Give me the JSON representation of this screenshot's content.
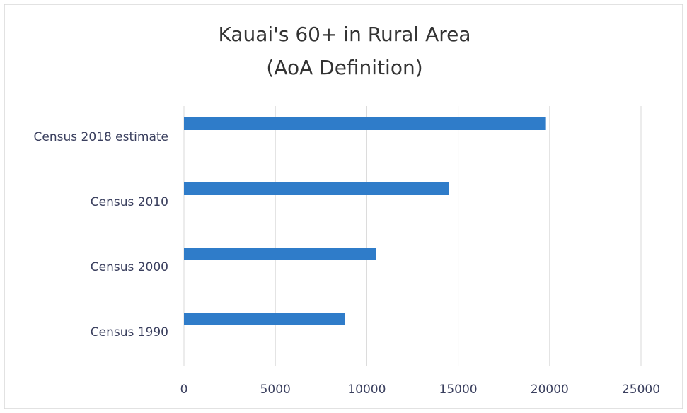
{
  "chart_data": {
    "type": "hbar",
    "title": [
      "Kauai's 60+ in Rural Area",
      "(AoA Definition)"
    ],
    "categories": [
      "Census 2018 estimate",
      "Census 2010",
      "Census 2000",
      "Census 1990"
    ],
    "values": [
      19800,
      14500,
      10500,
      8800
    ],
    "color": "#2f7cc9",
    "xlim": [
      0,
      25000
    ],
    "xticks": [
      0,
      5000,
      10000,
      15000,
      20000,
      25000
    ],
    "grid": true
  }
}
